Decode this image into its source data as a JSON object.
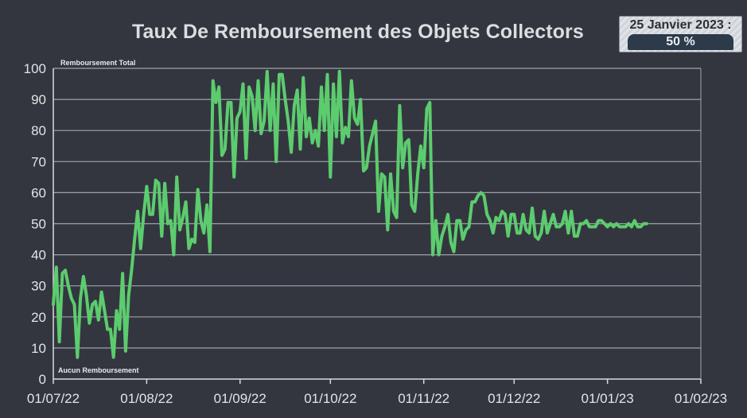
{
  "title": "Taux De Remboursement des Objets Collectors",
  "badge": {
    "date": "25 Janvier 2023 :",
    "value": "50 %"
  },
  "chart_data": {
    "type": "line",
    "title": "Taux De Remboursement des Objets Collectors",
    "xlabel": "",
    "ylabel": "",
    "ylim": [
      0,
      100
    ],
    "xlim": [
      "2022-07-01",
      "2023-02-01"
    ],
    "y_ticks": [
      0,
      10,
      20,
      30,
      40,
      50,
      60,
      70,
      80,
      90,
      100
    ],
    "x_tick_labels": [
      "01/07/22",
      "01/08/22",
      "01/09/22",
      "01/10/22",
      "01/11/22",
      "01/12/22",
      "01/01/23",
      "01/02/23"
    ],
    "grid": true,
    "annotations": [
      {
        "text": "Remboursement Total",
        "y": 100
      },
      {
        "text": "Aucun Remboursement",
        "y": 0
      }
    ],
    "line_color": "#5ccc6e",
    "series": [
      {
        "x_start": "2022-07-01",
        "x_step_days": 1,
        "values": [
          24,
          36,
          12,
          34,
          35,
          30,
          26,
          24,
          7,
          26,
          33,
          27,
          18,
          24,
          25,
          19,
          28,
          22,
          16,
          16,
          7,
          22,
          16,
          34,
          9,
          27,
          35,
          45,
          54,
          42,
          53,
          62,
          53,
          53,
          64,
          63,
          46,
          63,
          50,
          51,
          40,
          65,
          48,
          52,
          57,
          42,
          45,
          44,
          61,
          51,
          47,
          56,
          41,
          96,
          89,
          94,
          72,
          74,
          89,
          89,
          65,
          84,
          86,
          95,
          71,
          94,
          91,
          80,
          96,
          79,
          83,
          99,
          80,
          95,
          70,
          98,
          98,
          90,
          83,
          73,
          88,
          93,
          74,
          97,
          78,
          84,
          76,
          80,
          75,
          94,
          80,
          98,
          65,
          95,
          78,
          99,
          76,
          81,
          78,
          96,
          84,
          82,
          90,
          67,
          68,
          75,
          79,
          83,
          54,
          66,
          65,
          48,
          66,
          54,
          52,
          88,
          68,
          76,
          77,
          56,
          54,
          66,
          75,
          68,
          87,
          89,
          40,
          51,
          40,
          46,
          49,
          53,
          44,
          41,
          51,
          51,
          45,
          48,
          49,
          57,
          57,
          59,
          60,
          59,
          53,
          51,
          47,
          52,
          51,
          54,
          53,
          46,
          53,
          53,
          47,
          47,
          53,
          48,
          47,
          55,
          46,
          45,
          47,
          54,
          47,
          50,
          53,
          49,
          49,
          50,
          54,
          47,
          54,
          46,
          46,
          50,
          50,
          51,
          49,
          49,
          49,
          51,
          51,
          50,
          49,
          50,
          49,
          50,
          49,
          49,
          49,
          50,
          49,
          51,
          49,
          49,
          50,
          50
        ]
      }
    ]
  }
}
